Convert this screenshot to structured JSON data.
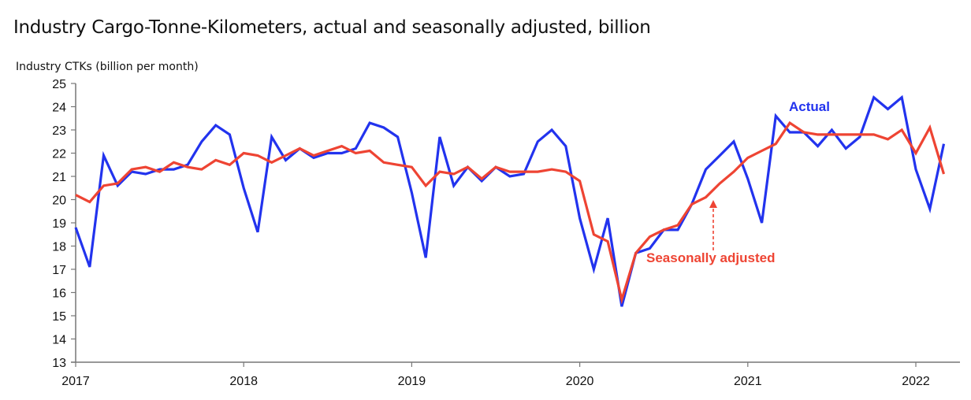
{
  "chart_data": {
    "type": "line",
    "title": "Industry Cargo-Tonne-Kilometers, actual and seasonally adjusted, billion",
    "ylabel": "Industry CTKs (billion per month)",
    "xlabel": "",
    "ylim": [
      13,
      25
    ],
    "yticks": [
      "13",
      "14",
      "15",
      "16",
      "17",
      "18",
      "19",
      "20",
      "21",
      "22",
      "23",
      "24",
      "25"
    ],
    "xticks": [
      "2017",
      "2018",
      "2019",
      "2020",
      "2021",
      "2022"
    ],
    "x_start": "2017-01",
    "x_step": "month",
    "grid": false,
    "series": [
      {
        "name": "Actual",
        "color": "#2233ee",
        "values": [
          18.8,
          17.1,
          21.9,
          20.6,
          21.2,
          21.1,
          21.3,
          21.3,
          21.5,
          22.5,
          23.2,
          22.8,
          20.5,
          18.6,
          22.7,
          21.7,
          22.2,
          21.8,
          22.0,
          22.0,
          22.2,
          23.3,
          23.1,
          22.7,
          20.3,
          17.5,
          22.7,
          20.6,
          21.4,
          20.8,
          21.4,
          21.0,
          21.1,
          22.5,
          23.0,
          22.3,
          19.2,
          17.0,
          19.2,
          15.4,
          17.7,
          17.9,
          18.7,
          18.7,
          19.8,
          21.3,
          21.9,
          22.5,
          20.9,
          19.0,
          23.6,
          22.9,
          22.9,
          22.3,
          23.0,
          22.2,
          22.7,
          24.4,
          23.9,
          24.4,
          21.3,
          19.6,
          22.4
        ]
      },
      {
        "name": "Seasonally adjusted",
        "color": "#ee4433",
        "values": [
          20.2,
          19.9,
          20.6,
          20.7,
          21.3,
          21.4,
          21.2,
          21.6,
          21.4,
          21.3,
          21.7,
          21.5,
          22.0,
          21.9,
          21.6,
          21.9,
          22.2,
          21.9,
          22.1,
          22.3,
          22.0,
          22.1,
          21.6,
          21.5,
          21.4,
          20.6,
          21.2,
          21.1,
          21.4,
          20.9,
          21.4,
          21.2,
          21.2,
          21.2,
          21.3,
          21.2,
          20.8,
          18.5,
          18.2,
          15.7,
          17.7,
          18.4,
          18.7,
          18.9,
          19.8,
          20.1,
          20.7,
          21.2,
          21.8,
          22.1,
          22.4,
          23.3,
          22.9,
          22.8,
          22.8,
          22.8,
          22.8,
          22.8,
          22.6,
          23.0,
          22.0,
          23.1,
          21.1
        ]
      }
    ],
    "annotations": [
      {
        "text": "Actual",
        "series": "Actual"
      },
      {
        "text": "Seasonally adjusted",
        "series": "Seasonally adjusted",
        "arrow": "dashed-up"
      }
    ]
  }
}
